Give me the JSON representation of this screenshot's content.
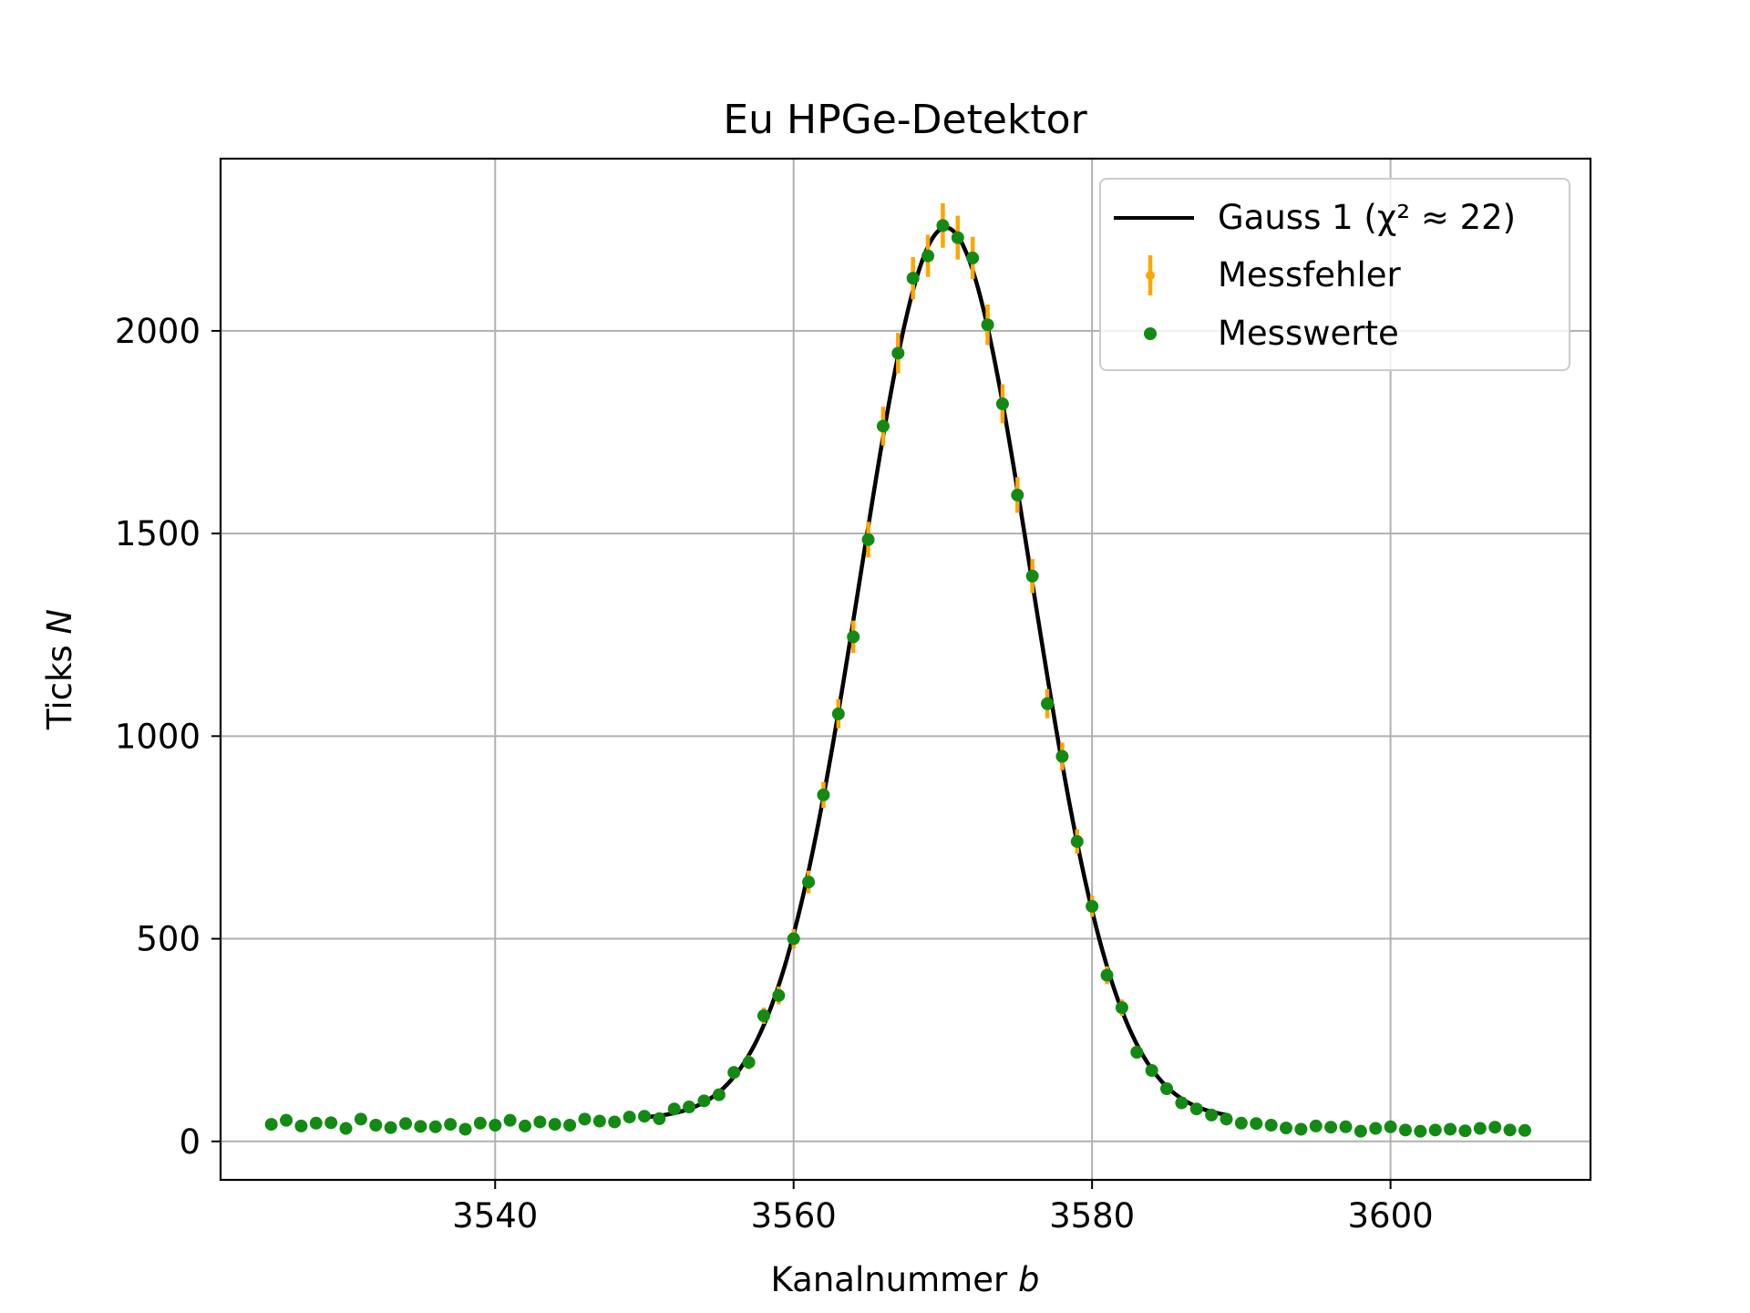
{
  "chart_data": {
    "type": "scatter",
    "title": "Eu HPGe-Detektor",
    "xlabel": "Kanalnummer",
    "xlabel_var": "b",
    "ylabel": "Ticks",
    "ylabel_var": "N",
    "xlim": [
      3521.6,
      3613.4
    ],
    "ylim": [
      -95,
      2425
    ],
    "xticks": [
      3540,
      3560,
      3580,
      3600
    ],
    "yticks": [
      0,
      500,
      1000,
      1500,
      2000
    ],
    "grid": true,
    "legend_position": "top-right",
    "legend": {
      "fit": "Gauss 1 (χ² ≈ 22)",
      "errors": "Messfehler",
      "points": "Messwerte"
    },
    "colors": {
      "fit": "#000000",
      "errors": "#ffa500",
      "points": "#138a13"
    },
    "fit": {
      "label": "Gauss 1 (χ² ≈ 22)",
      "x_range": [
        3550,
        3589
      ],
      "amplitude": 2200,
      "center": 3570.2,
      "sigma": 5.75,
      "offset": 55
    },
    "series": [
      {
        "name": "Messwerte",
        "x": [
          3525,
          3526,
          3527,
          3528,
          3529,
          3530,
          3531,
          3532,
          3533,
          3534,
          3535,
          3536,
          3537,
          3538,
          3539,
          3540,
          3541,
          3542,
          3543,
          3544,
          3545,
          3546,
          3547,
          3548,
          3549,
          3550,
          3551,
          3552,
          3553,
          3554,
          3555,
          3556,
          3557,
          3558,
          3559,
          3560,
          3561,
          3562,
          3563,
          3564,
          3565,
          3566,
          3567,
          3568,
          3569,
          3570,
          3571,
          3572,
          3573,
          3574,
          3575,
          3576,
          3577,
          3578,
          3579,
          3580,
          3581,
          3582,
          3583,
          3584,
          3585,
          3586,
          3587,
          3588,
          3589,
          3590,
          3591,
          3592,
          3593,
          3594,
          3595,
          3596,
          3597,
          3598,
          3599,
          3600,
          3601,
          3602,
          3603,
          3604,
          3605,
          3606,
          3607,
          3608,
          3609
        ],
        "y": [
          42,
          52,
          38,
          45,
          46,
          32,
          55,
          40,
          34,
          44,
          37,
          36,
          42,
          30,
          45,
          40,
          52,
          38,
          48,
          42,
          40,
          55,
          50,
          48,
          60,
          62,
          56,
          80,
          85,
          100,
          115,
          170,
          195,
          310,
          360,
          500,
          640,
          855,
          1055,
          1245,
          1485,
          1765,
          1945,
          2130,
          2185,
          2260,
          2230,
          2180,
          2015,
          1820,
          1595,
          1395,
          1080,
          950,
          740,
          580,
          410,
          330,
          220,
          175,
          130,
          95,
          80,
          65,
          55,
          45,
          44,
          40,
          33,
          30,
          38,
          35,
          36,
          25,
          32,
          36,
          28,
          25,
          28,
          30,
          26,
          32,
          35,
          28,
          27
        ],
        "errors": [
          10,
          10,
          9,
          10,
          10,
          9,
          10,
          10,
          9,
          10,
          9,
          9,
          10,
          9,
          10,
          10,
          10,
          9,
          10,
          10,
          10,
          10,
          10,
          10,
          11,
          11,
          10,
          12,
          12,
          13,
          14,
          16,
          17,
          20,
          22,
          24,
          28,
          32,
          36,
          40,
          44,
          48,
          50,
          52,
          52,
          55,
          54,
          52,
          50,
          48,
          44,
          42,
          36,
          34,
          30,
          26,
          22,
          20,
          16,
          14,
          12,
          11,
          10,
          10,
          10,
          10,
          10,
          10,
          9,
          9,
          10,
          10,
          10,
          9,
          9,
          10,
          9,
          9,
          9,
          9,
          9,
          9,
          10,
          9,
          9
        ]
      }
    ]
  }
}
